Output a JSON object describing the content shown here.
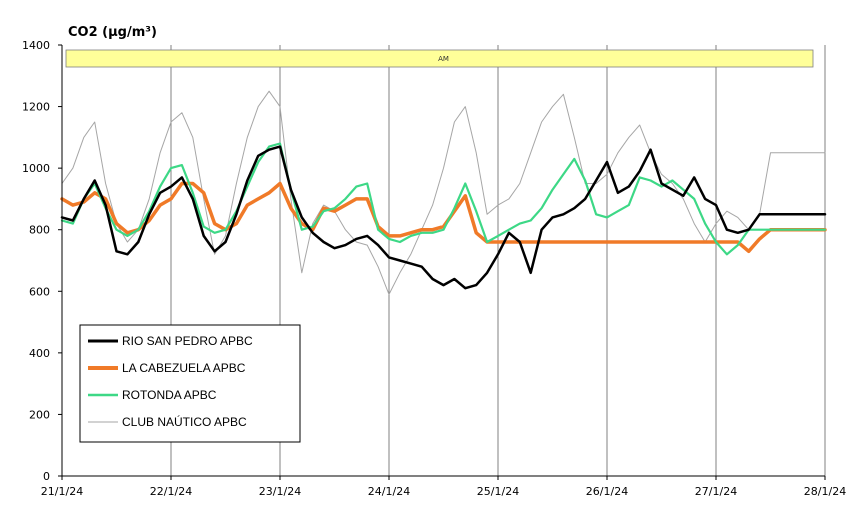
{
  "chart_data": {
    "type": "line",
    "title": "CO2 (µg/m³)",
    "banner_label": "AM",
    "xlabel": "",
    "ylabel": "",
    "ylim": [
      0,
      1400
    ],
    "yticks": [
      0,
      200,
      400,
      600,
      800,
      1000,
      1200,
      1400
    ],
    "ytick_labels": [
      "0",
      "200",
      "400",
      "600",
      "800",
      "1000",
      "1200",
      "1400"
    ],
    "xlim": [
      0,
      7
    ],
    "xtick_labels": [
      "21/1/24",
      "22/1/24",
      "23/1/24",
      "24/1/24",
      "25/1/24",
      "26/1/24",
      "27/1/24",
      "28/1/24"
    ],
    "grid": {
      "vertical": true,
      "horizontal": false
    },
    "legend_position": "bottom-left",
    "series": [
      {
        "name": "RIO SAN PEDRO APBC",
        "color": "#000000",
        "x": [
          0,
          0.1,
          0.2,
          0.3,
          0.4,
          0.5,
          0.6,
          0.7,
          0.8,
          0.9,
          1.0,
          1.1,
          1.2,
          1.3,
          1.4,
          1.5,
          1.6,
          1.7,
          1.8,
          1.9,
          2.0,
          2.1,
          2.2,
          2.3,
          2.4,
          2.5,
          2.6,
          2.7,
          2.8,
          2.9,
          3.0,
          3.1,
          3.2,
          3.3,
          3.4,
          3.5,
          3.6,
          3.7,
          3.8,
          3.9,
          4.0,
          4.1,
          4.2,
          4.3,
          4.4,
          4.5,
          4.6,
          4.7,
          4.8,
          4.9,
          5.0,
          5.1,
          5.2,
          5.3,
          5.4,
          5.5,
          5.6,
          5.7,
          5.8,
          5.9,
          6.0,
          6.1,
          6.2,
          6.3,
          6.4,
          6.5,
          6.6,
          6.7,
          6.8,
          6.9,
          7.0
        ],
        "values": [
          840,
          830,
          900,
          960,
          880,
          730,
          720,
          760,
          850,
          920,
          940,
          970,
          900,
          780,
          730,
          760,
          850,
          960,
          1040,
          1060,
          1070,
          930,
          840,
          790,
          760,
          740,
          750,
          770,
          780,
          750,
          710,
          700,
          690,
          680,
          640,
          620,
          640,
          610,
          620,
          660,
          720,
          790,
          760,
          660,
          800,
          840,
          850,
          870,
          900,
          960,
          1020,
          920,
          940,
          990,
          1060,
          950,
          930,
          910,
          970,
          900,
          880,
          800,
          790,
          800,
          850,
          850,
          850,
          850,
          850,
          850,
          850
        ]
      },
      {
        "name": "LA CABEZUELA  APBC",
        "color": "#f07a28",
        "x": [
          0,
          0.1,
          0.2,
          0.3,
          0.4,
          0.5,
          0.6,
          0.7,
          0.8,
          0.9,
          1.0,
          1.1,
          1.2,
          1.3,
          1.4,
          1.5,
          1.6,
          1.7,
          1.8,
          1.9,
          2.0,
          2.1,
          2.2,
          2.3,
          2.4,
          2.5,
          2.6,
          2.7,
          2.8,
          2.9,
          3.0,
          3.1,
          3.2,
          3.3,
          3.4,
          3.5,
          3.6,
          3.7,
          3.8,
          3.9,
          4.0,
          4.1,
          4.2,
          4.3,
          4.4,
          4.5,
          4.6,
          4.7,
          4.8,
          4.9,
          5.0,
          5.1,
          5.2,
          5.3,
          5.4,
          5.5,
          5.6,
          5.7,
          5.8,
          5.9,
          6.0,
          6.1,
          6.2,
          6.3,
          6.4,
          6.5,
          6.6,
          6.7,
          6.8,
          6.9,
          7.0
        ],
        "values": [
          900,
          880,
          890,
          920,
          900,
          820,
          790,
          800,
          830,
          880,
          900,
          950,
          950,
          920,
          820,
          800,
          820,
          880,
          900,
          920,
          950,
          870,
          820,
          800,
          870,
          860,
          880,
          900,
          900,
          810,
          780,
          780,
          790,
          800,
          800,
          810,
          860,
          910,
          790,
          760,
          760,
          760,
          760,
          760,
          760,
          760,
          760,
          760,
          760,
          760,
          760,
          760,
          760,
          760,
          760,
          760,
          760,
          760,
          760,
          760,
          760,
          760,
          760,
          730,
          770,
          800,
          800,
          800,
          800,
          800,
          800
        ]
      },
      {
        "name": "ROTONDA  APBC",
        "color": "#3dd886",
        "x": [
          0,
          0.1,
          0.2,
          0.3,
          0.4,
          0.5,
          0.6,
          0.7,
          0.8,
          0.9,
          1.0,
          1.1,
          1.2,
          1.3,
          1.4,
          1.5,
          1.6,
          1.7,
          1.8,
          1.9,
          2.0,
          2.1,
          2.2,
          2.3,
          2.4,
          2.5,
          2.6,
          2.7,
          2.8,
          2.9,
          3.0,
          3.1,
          3.2,
          3.3,
          3.4,
          3.5,
          3.6,
          3.7,
          3.8,
          3.9,
          4.0,
          4.1,
          4.2,
          4.3,
          4.4,
          4.5,
          4.6,
          4.7,
          4.8,
          4.9,
          5.0,
          5.1,
          5.2,
          5.3,
          5.4,
          5.5,
          5.6,
          5.7,
          5.8,
          5.9,
          6.0,
          6.1,
          6.2,
          6.3,
          6.4,
          6.5,
          6.6,
          6.7,
          6.8,
          6.9,
          7.0
        ],
        "values": [
          830,
          820,
          900,
          950,
          870,
          800,
          780,
          800,
          860,
          940,
          1000,
          1010,
          920,
          810,
          790,
          800,
          860,
          940,
          1020,
          1070,
          1080,
          930,
          800,
          810,
          860,
          870,
          900,
          940,
          950,
          800,
          770,
          760,
          780,
          790,
          790,
          800,
          870,
          950,
          860,
          760,
          780,
          800,
          820,
          830,
          870,
          930,
          980,
          1030,
          960,
          850,
          840,
          860,
          880,
          970,
          960,
          940,
          960,
          930,
          900,
          820,
          760,
          720,
          750,
          800,
          800,
          800,
          800,
          800,
          800,
          800,
          800
        ]
      },
      {
        "name": "CLUB NAÚTICO  APBC",
        "color": "#a6a6a6",
        "x": [
          0,
          0.1,
          0.2,
          0.3,
          0.4,
          0.5,
          0.6,
          0.7,
          0.8,
          0.9,
          1.0,
          1.1,
          1.2,
          1.3,
          1.4,
          1.5,
          1.6,
          1.7,
          1.8,
          1.9,
          2.0,
          2.1,
          2.2,
          2.3,
          2.4,
          2.5,
          2.6,
          2.7,
          2.8,
          2.9,
          3.0,
          3.1,
          3.2,
          3.3,
          3.4,
          3.5,
          3.6,
          3.7,
          3.8,
          3.9,
          4.0,
          4.1,
          4.2,
          4.3,
          4.4,
          4.5,
          4.6,
          4.7,
          4.8,
          4.9,
          5.0,
          5.1,
          5.2,
          5.3,
          5.4,
          5.5,
          5.6,
          5.7,
          5.8,
          5.9,
          6.0,
          6.1,
          6.2,
          6.3,
          6.4,
          6.5,
          6.6,
          6.7,
          6.8,
          6.9,
          7.0
        ],
        "values": [
          950,
          1000,
          1100,
          1150,
          950,
          820,
          760,
          800,
          900,
          1050,
          1150,
          1180,
          1100,
          900,
          720,
          780,
          950,
          1100,
          1200,
          1250,
          1200,
          900,
          660,
          820,
          880,
          860,
          800,
          760,
          750,
          680,
          590,
          660,
          720,
          800,
          880,
          1000,
          1150,
          1200,
          1050,
          850,
          880,
          900,
          950,
          1050,
          1150,
          1200,
          1240,
          1100,
          950,
          950,
          980,
          1050,
          1100,
          1140,
          1050,
          980,
          950,
          900,
          820,
          760,
          820,
          860,
          840,
          800,
          850,
          1050,
          1050,
          1050,
          1050,
          1050,
          1050
        ]
      }
    ]
  }
}
